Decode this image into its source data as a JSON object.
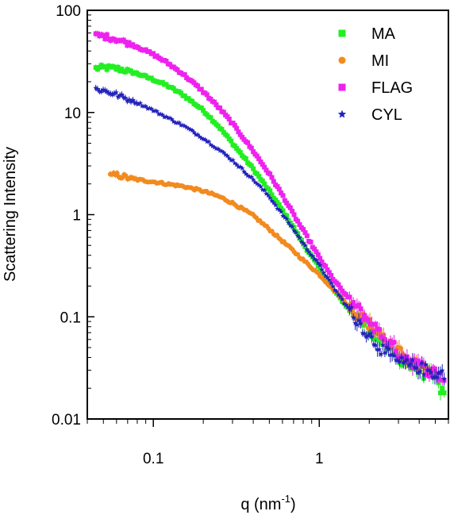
{
  "chart_data": {
    "type": "scatter",
    "title": "",
    "xlabel": "q (nm",
    "xlabel_sup": "-1",
    "xlabel_close": ")",
    "ylabel": "Scattering Intensity",
    "xscale": "log",
    "yscale": "log",
    "xlim": [
      0.04,
      6
    ],
    "ylim": [
      0.01,
      100
    ],
    "xticks": [
      0.1,
      1
    ],
    "xtick_labels": [
      "0.1",
      "1"
    ],
    "yticks": [
      0.01,
      0.1,
      1,
      10,
      100
    ],
    "ytick_labels": [
      "0.01",
      "0.1",
      "1",
      "10",
      "100"
    ],
    "grid": false,
    "legend_position": "top-right",
    "series": [
      {
        "name": "MA",
        "color": "#22ee22",
        "marker": "square",
        "points": [
          [
            0.045,
            27
          ],
          [
            0.05,
            27.5
          ],
          [
            0.06,
            27
          ],
          [
            0.07,
            25.5
          ],
          [
            0.08,
            24
          ],
          [
            0.1,
            21
          ],
          [
            0.12,
            18.5
          ],
          [
            0.15,
            15
          ],
          [
            0.2,
            10.5
          ],
          [
            0.25,
            7.2
          ],
          [
            0.3,
            5
          ],
          [
            0.4,
            2.8
          ],
          [
            0.5,
            1.7
          ],
          [
            0.6,
            1.1
          ],
          [
            0.7,
            0.75
          ],
          [
            0.8,
            0.52
          ],
          [
            1.0,
            0.3
          ],
          [
            1.2,
            0.19
          ],
          [
            1.5,
            0.12
          ],
          [
            2.0,
            0.075
          ],
          [
            2.5,
            0.052
          ],
          [
            3.0,
            0.04
          ],
          [
            4.0,
            0.03
          ],
          [
            5.0,
            0.025
          ],
          [
            5.8,
            0.016
          ]
        ]
      },
      {
        "name": "MI",
        "color": "#f28a1e",
        "marker": "circle",
        "points": [
          [
            0.055,
            2.4
          ],
          [
            0.06,
            2.45
          ],
          [
            0.07,
            2.3
          ],
          [
            0.08,
            2.2
          ],
          [
            0.1,
            2.1
          ],
          [
            0.12,
            2.0
          ],
          [
            0.15,
            1.9
          ],
          [
            0.2,
            1.7
          ],
          [
            0.25,
            1.5
          ],
          [
            0.3,
            1.3
          ],
          [
            0.4,
            0.98
          ],
          [
            0.5,
            0.72
          ],
          [
            0.6,
            0.55
          ],
          [
            0.7,
            0.44
          ],
          [
            0.8,
            0.36
          ],
          [
            1.0,
            0.26
          ],
          [
            1.2,
            0.19
          ],
          [
            1.5,
            0.13
          ],
          [
            2.0,
            0.085
          ],
          [
            2.5,
            0.06
          ],
          [
            3.0,
            0.045
          ],
          [
            4.0,
            0.032
          ],
          [
            5.0,
            0.026
          ]
        ]
      },
      {
        "name": "FLAG",
        "color": "#ee22ee",
        "marker": "square",
        "points": [
          [
            0.045,
            57
          ],
          [
            0.05,
            56
          ],
          [
            0.06,
            52
          ],
          [
            0.07,
            48
          ],
          [
            0.08,
            44
          ],
          [
            0.1,
            37
          ],
          [
            0.12,
            31
          ],
          [
            0.15,
            24
          ],
          [
            0.2,
            16
          ],
          [
            0.25,
            11
          ],
          [
            0.3,
            7.8
          ],
          [
            0.4,
            4.2
          ],
          [
            0.5,
            2.5
          ],
          [
            0.6,
            1.55
          ],
          [
            0.7,
            1.0
          ],
          [
            0.8,
            0.7
          ],
          [
            1.0,
            0.38
          ],
          [
            1.2,
            0.24
          ],
          [
            1.5,
            0.15
          ],
          [
            2.0,
            0.09
          ],
          [
            2.5,
            0.06
          ],
          [
            3.0,
            0.045
          ],
          [
            4.0,
            0.033
          ],
          [
            5.0,
            0.028
          ],
          [
            5.8,
            0.025
          ]
        ]
      },
      {
        "name": "CYL",
        "color": "#2222bb",
        "marker": "star",
        "points": [
          [
            0.045,
            17
          ],
          [
            0.05,
            16.5
          ],
          [
            0.06,
            15
          ],
          [
            0.07,
            13.5
          ],
          [
            0.08,
            12.5
          ],
          [
            0.1,
            10.5
          ],
          [
            0.12,
            9
          ],
          [
            0.15,
            7.5
          ],
          [
            0.2,
            5.6
          ],
          [
            0.25,
            4.3
          ],
          [
            0.3,
            3.4
          ],
          [
            0.4,
            2.2
          ],
          [
            0.5,
            1.5
          ],
          [
            0.6,
            1.0
          ],
          [
            0.7,
            0.72
          ],
          [
            0.8,
            0.52
          ],
          [
            1.0,
            0.32
          ],
          [
            1.2,
            0.2
          ],
          [
            1.5,
            0.12
          ],
          [
            2.0,
            0.065
          ],
          [
            2.5,
            0.045
          ],
          [
            3.0,
            0.036
          ],
          [
            4.0,
            0.032
          ],
          [
            5.0,
            0.028
          ],
          [
            5.8,
            0.028
          ]
        ]
      }
    ]
  }
}
